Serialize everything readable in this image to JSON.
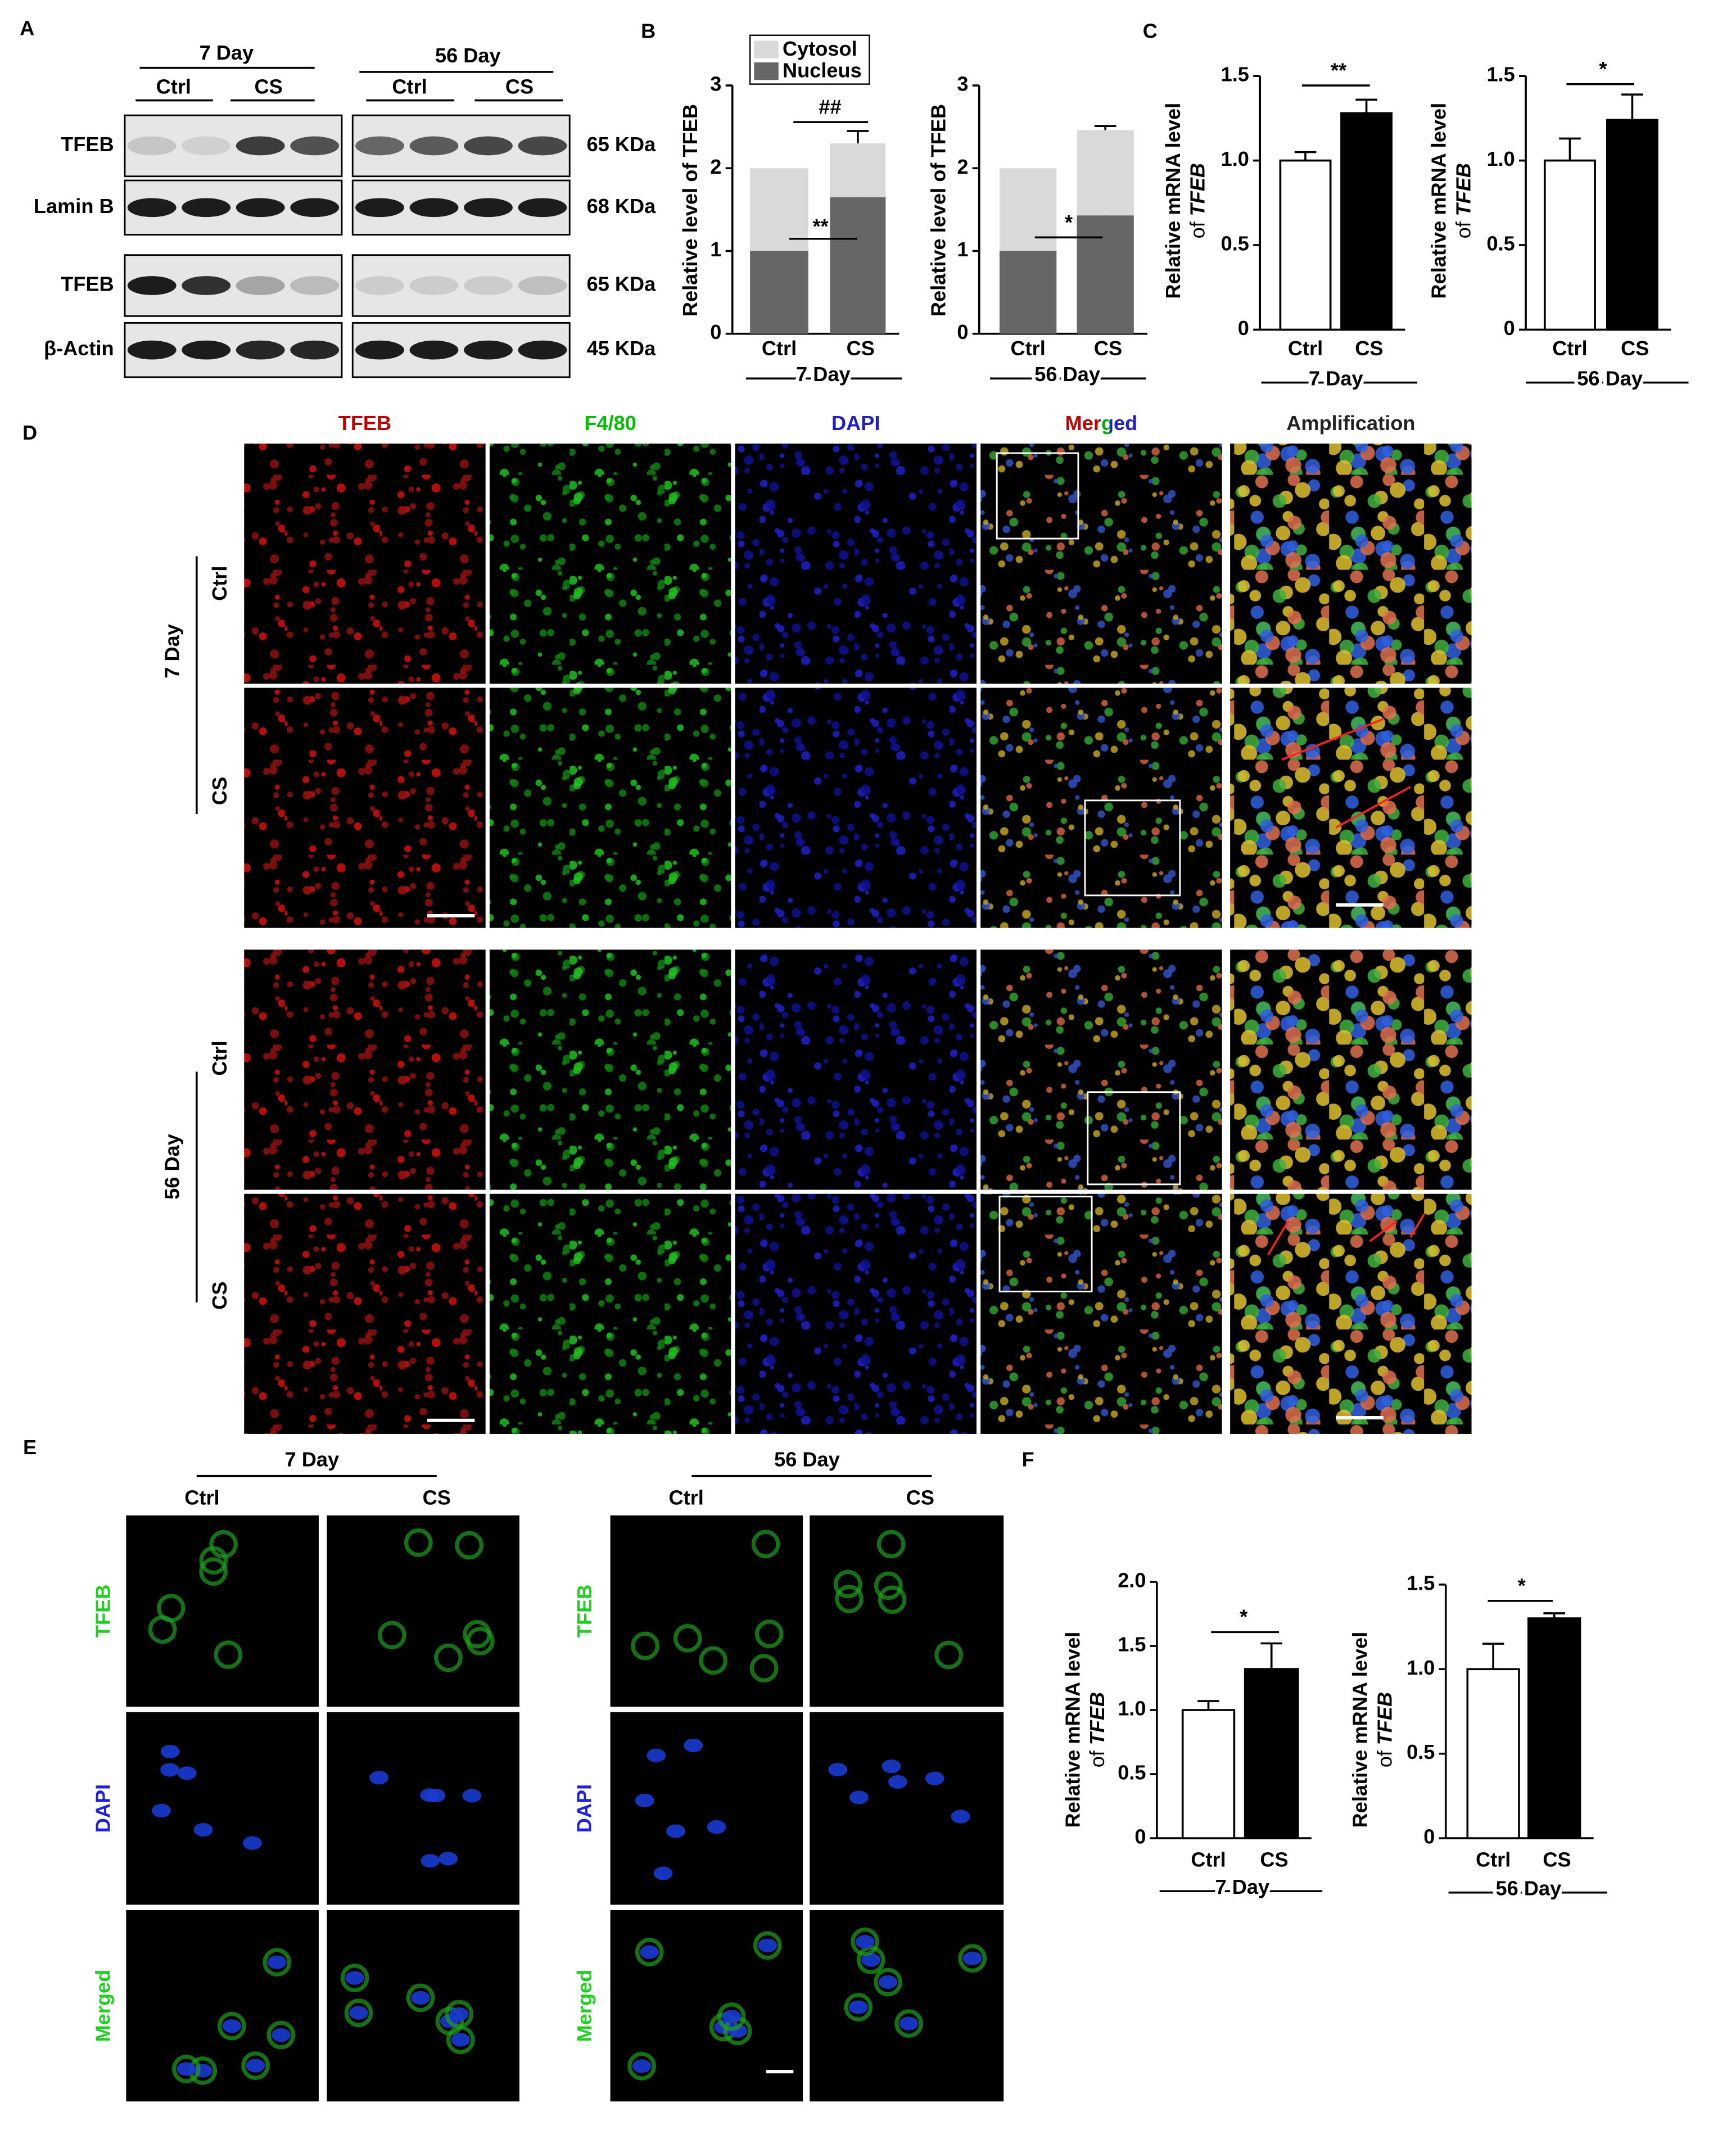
{
  "panels": {
    "labels": [
      "A",
      "B",
      "C",
      "D",
      "E",
      "F"
    ]
  },
  "blot": {
    "groups": [
      "7 Day",
      "56 Day"
    ],
    "conditions": [
      "Ctrl",
      "CS",
      "Ctrl",
      "CS"
    ],
    "rows": [
      "TFEB",
      "Lamin B",
      "TFEB",
      "β-Actin"
    ],
    "sizes": [
      "65 KDa",
      "68 KDa",
      "65 KDa",
      "45 KDa"
    ]
  },
  "chart_data": [
    {
      "type": "stacked_bar",
      "ylabel": "Relative level of TFEB",
      "categories": [
        "Ctrl",
        "CS"
      ],
      "xlabel": "7 Day",
      "ylim": [
        0,
        3
      ],
      "yticks": [
        0,
        1,
        2,
        3
      ],
      "series": [
        {
          "name": "Nucleus",
          "color": "#666666",
          "values": [
            1.0,
            1.65
          ],
          "errors": [
            null,
            0.07
          ]
        },
        {
          "name": "Cytosol",
          "color": "#d9d9d9",
          "values": [
            1.0,
            0.65
          ],
          "errors": [
            null,
            0.15
          ]
        }
      ],
      "annotations": [
        "##",
        "**"
      ],
      "legend": "upper left"
    },
    {
      "type": "stacked_bar",
      "ylabel": "Relative level of TFEB",
      "categories": [
        "Ctrl",
        "CS"
      ],
      "xlabel": "56 Day",
      "ylim": [
        0,
        3
      ],
      "yticks": [
        0,
        1,
        2,
        3
      ],
      "series": [
        {
          "color": "#666666",
          "values": [
            1.0,
            1.43
          ],
          "errors": [
            null,
            0.1
          ]
        },
        {
          "color": "#d9d9d9",
          "values": [
            1.0,
            1.03
          ],
          "errors": [
            null,
            0.05
          ]
        }
      ],
      "annotations": [
        "*"
      ]
    },
    {
      "type": "bar",
      "ylabel": [
        "Relative mRNA level",
        "of",
        "TFEB"
      ],
      "categories": [
        "Ctrl",
        "CS"
      ],
      "xlabel": "7 Day",
      "values": [
        1.0,
        1.28
      ],
      "errors": [
        0.05,
        0.08
      ],
      "colors": [
        "#ffffff",
        "#000000"
      ],
      "ylim": [
        0,
        1.5
      ],
      "yticks": [
        0,
        0.5,
        {
          "value": 1,
          "label": "1.0"
        },
        1.5
      ],
      "annotations": [
        "**"
      ]
    },
    {
      "type": "bar",
      "ylabel": [
        "Relative mRNA level",
        "of",
        "TFEB"
      ],
      "categories": [
        "Ctrl",
        "CS"
      ],
      "xlabel": "56 Day",
      "values": [
        1.0,
        1.24
      ],
      "errors": [
        0.13,
        0.15
      ],
      "colors": [
        "#ffffff",
        "#000000"
      ],
      "ylim": [
        0,
        1.5
      ],
      "yticks": [
        0,
        0.5,
        {
          "value": 1,
          "label": "1.0"
        },
        1.5
      ],
      "annotations": [
        "*"
      ]
    },
    {
      "type": "bar",
      "ylabel": [
        "Relative mRNA level",
        "of",
        "TFEB"
      ],
      "categories": [
        "Ctrl",
        "CS"
      ],
      "xlabel": "7 Day",
      "values": [
        1.0,
        1.32
      ],
      "errors": [
        0.07,
        0.2
      ],
      "colors": [
        "#ffffff",
        "#000000"
      ],
      "ylim": [
        0,
        2
      ],
      "yticks": [
        0,
        0.5,
        {
          "value": 1,
          "label": "1.0"
        },
        1.5,
        {
          "value": 2,
          "label": "2.0"
        }
      ],
      "annotations": [
        "*"
      ]
    },
    {
      "type": "bar",
      "ylabel": [
        "Relative mRNA level",
        "of",
        "TFEB"
      ],
      "categories": [
        "Ctrl",
        "CS"
      ],
      "xlabel": "56 Day",
      "values": [
        1.0,
        1.3
      ],
      "errors": [
        0.15,
        0.03
      ],
      "colors": [
        "#ffffff",
        "#000000"
      ],
      "ylim": [
        0,
        1.5
      ],
      "yticks": [
        0,
        0.5,
        {
          "value": 1,
          "label": "1.0"
        },
        1.5
      ],
      "annotations": [
        "*"
      ]
    }
  ],
  "if": {
    "columns": [
      "TFEB",
      "F4/80",
      "DAPI",
      "Merged",
      "Amplification"
    ],
    "groups": [
      {
        "name": "7 Day",
        "rows": [
          "Ctrl",
          "CS"
        ]
      },
      {
        "name": "56 Day",
        "rows": [
          "Ctrl",
          "CS"
        ]
      }
    ]
  },
  "icc": {
    "groups": [
      {
        "name": "7 Day",
        "conditions": [
          "Ctrl",
          "CS"
        ],
        "rows": [
          "TFEB",
          "DAPI",
          "Merged"
        ]
      },
      {
        "name": "56 Day",
        "conditions": [
          "Ctrl",
          "CS"
        ],
        "rows": [
          "TFEB",
          "DAPI",
          "Merged"
        ]
      }
    ]
  }
}
